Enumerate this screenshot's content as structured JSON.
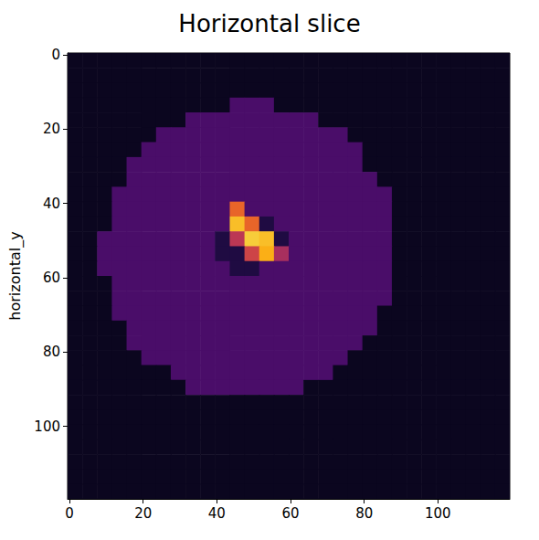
{
  "chart_data": {
    "type": "heatmap",
    "title": "Horizontal slice",
    "y_label": "horizontal_y",
    "xlim": [
      -0.5,
      119.5
    ],
    "ylim": [
      119.5,
      -0.5
    ],
    "xticks": [
      0,
      20,
      40,
      60,
      80,
      100
    ],
    "yticks": [
      0,
      20,
      40,
      60,
      80,
      100
    ],
    "grid": false,
    "zlim": [
      0,
      100
    ],
    "x_edges": [
      -0.5,
      3.5,
      7.5,
      11.5,
      15.5,
      19.5,
      23.5,
      27.5,
      31.5,
      35.5,
      39.5,
      43.5,
      47.5,
      51.5,
      55.5,
      59.5,
      63.5,
      67.5,
      71.5,
      75.5,
      79.5,
      83.5,
      87.5,
      91.5,
      95.5,
      99.5,
      103.5,
      107.5,
      111.5,
      115.5,
      119.5
    ],
    "y_edges": [
      -0.5,
      3.5,
      7.5,
      11.5,
      15.5,
      19.5,
      23.5,
      27.5,
      31.5,
      35.5,
      39.5,
      43.5,
      47.5,
      51.5,
      55.5,
      59.5,
      63.5,
      67.5,
      71.5,
      75.5,
      79.5,
      83.5,
      87.5,
      91.5,
      95.5,
      99.5,
      103.5,
      107.5,
      111.5,
      115.5,
      119.5
    ],
    "cells": [
      [
        5,
        5,
        5,
        5,
        5,
        5,
        5,
        5,
        5,
        5,
        5,
        5,
        5,
        5,
        5,
        5,
        5,
        5,
        5,
        5,
        5,
        5,
        5,
        5,
        5,
        5,
        5,
        5,
        5,
        5
      ],
      [
        5,
        5,
        5,
        5,
        5,
        5,
        5,
        5,
        5,
        5,
        5,
        5,
        5,
        5,
        5,
        5,
        5,
        5,
        5,
        5,
        5,
        5,
        5,
        5,
        5,
        5,
        5,
        5,
        5,
        5
      ],
      [
        5,
        5,
        5,
        5,
        5,
        5,
        5,
        5,
        5,
        5,
        5,
        5,
        5,
        5,
        5,
        5,
        5,
        5,
        5,
        5,
        5,
        5,
        5,
        5,
        5,
        5,
        5,
        5,
        5,
        5
      ],
      [
        5,
        5,
        5,
        5,
        5,
        5,
        5,
        5,
        5,
        5,
        5,
        22,
        22,
        22,
        5,
        5,
        5,
        5,
        5,
        5,
        5,
        5,
        5,
        5,
        5,
        5,
        5,
        5,
        5,
        5
      ],
      [
        5,
        5,
        5,
        5,
        5,
        5,
        5,
        5,
        22,
        22,
        22,
        22,
        22,
        22,
        22,
        22,
        22,
        5,
        5,
        5,
        5,
        5,
        5,
        5,
        5,
        5,
        5,
        5,
        5,
        5
      ],
      [
        5,
        5,
        5,
        5,
        5,
        5,
        22,
        22,
        22,
        22,
        22,
        22,
        22,
        22,
        22,
        22,
        22,
        22,
        22,
        5,
        5,
        5,
        5,
        5,
        5,
        5,
        5,
        5,
        5,
        5
      ],
      [
        5,
        5,
        5,
        5,
        5,
        22,
        22,
        22,
        22,
        22,
        22,
        22,
        22,
        22,
        22,
        22,
        22,
        22,
        22,
        22,
        5,
        5,
        5,
        5,
        5,
        5,
        5,
        5,
        5,
        5
      ],
      [
        5,
        5,
        5,
        5,
        22,
        22,
        22,
        22,
        22,
        22,
        22,
        22,
        22,
        22,
        22,
        22,
        22,
        22,
        22,
        22,
        5,
        5,
        5,
        5,
        5,
        5,
        5,
        5,
        5,
        5
      ],
      [
        5,
        5,
        5,
        5,
        22,
        22,
        22,
        22,
        22,
        22,
        22,
        22,
        22,
        22,
        22,
        22,
        22,
        22,
        22,
        22,
        22,
        5,
        5,
        5,
        5,
        5,
        5,
        5,
        5,
        5
      ],
      [
        5,
        5,
        5,
        22,
        22,
        22,
        22,
        22,
        22,
        22,
        22,
        22,
        22,
        22,
        22,
        22,
        22,
        22,
        22,
        22,
        22,
        22,
        5,
        5,
        5,
        5,
        5,
        5,
        5,
        5
      ],
      [
        5,
        5,
        5,
        22,
        22,
        22,
        22,
        22,
        22,
        22,
        22,
        65,
        22,
        22,
        22,
        22,
        22,
        22,
        22,
        22,
        22,
        22,
        5,
        5,
        5,
        5,
        5,
        5,
        5,
        5
      ],
      [
        5,
        5,
        5,
        22,
        22,
        22,
        22,
        22,
        22,
        22,
        22,
        85,
        65,
        12,
        22,
        22,
        22,
        22,
        22,
        22,
        22,
        22,
        5,
        5,
        5,
        5,
        5,
        5,
        5,
        5
      ],
      [
        5,
        5,
        22,
        22,
        22,
        22,
        22,
        22,
        22,
        22,
        12,
        50,
        88,
        85,
        12,
        22,
        22,
        22,
        22,
        22,
        22,
        22,
        5,
        5,
        5,
        5,
        5,
        5,
        5,
        5
      ],
      [
        5,
        5,
        22,
        22,
        22,
        22,
        22,
        22,
        22,
        22,
        12,
        12,
        55,
        82,
        45,
        22,
        22,
        22,
        22,
        22,
        22,
        22,
        5,
        5,
        5,
        5,
        5,
        5,
        5,
        5
      ],
      [
        5,
        5,
        22,
        22,
        22,
        22,
        22,
        22,
        22,
        22,
        22,
        12,
        12,
        22,
        22,
        22,
        22,
        22,
        22,
        22,
        22,
        22,
        5,
        5,
        5,
        5,
        5,
        5,
        5,
        5
      ],
      [
        5,
        5,
        5,
        22,
        22,
        22,
        22,
        22,
        22,
        22,
        22,
        22,
        22,
        22,
        22,
        22,
        22,
        22,
        22,
        22,
        22,
        22,
        5,
        5,
        5,
        5,
        5,
        5,
        5,
        5
      ],
      [
        5,
        5,
        5,
        22,
        22,
        22,
        22,
        22,
        22,
        22,
        22,
        22,
        22,
        22,
        22,
        22,
        22,
        22,
        22,
        22,
        22,
        22,
        5,
        5,
        5,
        5,
        5,
        5,
        5,
        5
      ],
      [
        5,
        5,
        5,
        22,
        22,
        22,
        22,
        22,
        22,
        22,
        22,
        22,
        22,
        22,
        22,
        22,
        22,
        22,
        22,
        22,
        22,
        5,
        5,
        5,
        5,
        5,
        5,
        5,
        5,
        5
      ],
      [
        5,
        5,
        5,
        5,
        22,
        22,
        22,
        22,
        22,
        22,
        22,
        22,
        22,
        22,
        22,
        22,
        22,
        22,
        22,
        22,
        22,
        5,
        5,
        5,
        5,
        5,
        5,
        5,
        5,
        5
      ],
      [
        5,
        5,
        5,
        5,
        22,
        22,
        22,
        22,
        22,
        22,
        22,
        22,
        22,
        22,
        22,
        22,
        22,
        22,
        22,
        22,
        5,
        5,
        5,
        5,
        5,
        5,
        5,
        5,
        5,
        5
      ],
      [
        5,
        5,
        5,
        5,
        5,
        22,
        22,
        22,
        22,
        22,
        22,
        22,
        22,
        22,
        22,
        22,
        22,
        22,
        22,
        5,
        5,
        5,
        5,
        5,
        5,
        5,
        5,
        5,
        5,
        5
      ],
      [
        5,
        5,
        5,
        5,
        5,
        5,
        5,
        22,
        22,
        22,
        22,
        22,
        22,
        22,
        22,
        22,
        22,
        22,
        5,
        5,
        5,
        5,
        5,
        5,
        5,
        5,
        5,
        5,
        5,
        5
      ],
      [
        5,
        5,
        5,
        5,
        5,
        5,
        5,
        5,
        22,
        22,
        22,
        22,
        22,
        22,
        22,
        22,
        5,
        5,
        5,
        5,
        5,
        5,
        5,
        5,
        5,
        5,
        5,
        5,
        5,
        5
      ],
      [
        5,
        5,
        5,
        5,
        5,
        5,
        5,
        5,
        5,
        5,
        5,
        5,
        5,
        5,
        5,
        5,
        5,
        5,
        5,
        5,
        5,
        5,
        5,
        5,
        5,
        5,
        5,
        5,
        5,
        5
      ],
      [
        5,
        5,
        5,
        5,
        5,
        5,
        5,
        5,
        5,
        5,
        5,
        5,
        5,
        5,
        5,
        5,
        5,
        5,
        5,
        5,
        5,
        5,
        5,
        5,
        5,
        5,
        5,
        5,
        5,
        5
      ],
      [
        5,
        5,
        5,
        5,
        5,
        5,
        5,
        5,
        5,
        5,
        5,
        5,
        5,
        5,
        5,
        5,
        5,
        5,
        5,
        5,
        5,
        5,
        5,
        5,
        5,
        5,
        5,
        5,
        5,
        5
      ],
      [
        5,
        5,
        5,
        5,
        5,
        5,
        5,
        5,
        5,
        5,
        5,
        5,
        5,
        5,
        5,
        5,
        5,
        5,
        5,
        5,
        5,
        5,
        5,
        5,
        5,
        5,
        5,
        5,
        5,
        5
      ],
      [
        5,
        5,
        5,
        5,
        5,
        5,
        5,
        5,
        5,
        5,
        5,
        5,
        5,
        5,
        5,
        5,
        5,
        5,
        5,
        5,
        5,
        5,
        5,
        5,
        5,
        5,
        5,
        5,
        5,
        5
      ],
      [
        5,
        5,
        5,
        5,
        5,
        5,
        5,
        5,
        5,
        5,
        5,
        5,
        5,
        5,
        5,
        5,
        5,
        5,
        5,
        5,
        5,
        5,
        5,
        5,
        5,
        5,
        5,
        5,
        5,
        5
      ],
      [
        5,
        5,
        5,
        5,
        5,
        5,
        5,
        5,
        5,
        5,
        5,
        5,
        5,
        5,
        5,
        5,
        5,
        5,
        5,
        5,
        5,
        5,
        5,
        5,
        5,
        5,
        5,
        5,
        5,
        5
      ]
    ]
  }
}
